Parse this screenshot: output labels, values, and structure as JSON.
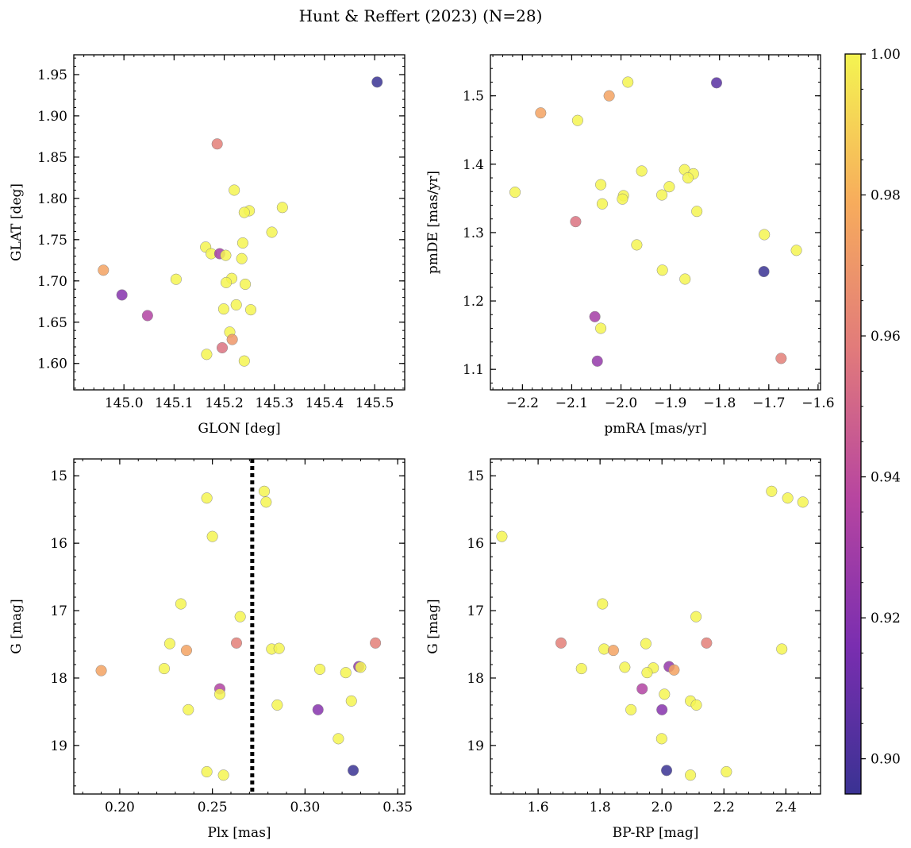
{
  "figure": {
    "title": "Hunt & Reffert (2023) (N=28)"
  },
  "chart_data": [
    {
      "type": "scatter",
      "panel": "top-left",
      "xlabel": "GLON [deg]",
      "ylabel": "GLAT [deg]",
      "xlim": [
        144.9,
        145.56
      ],
      "ylim": [
        1.568,
        1.974
      ],
      "xticks": [
        "145.0",
        "145.1",
        "145.2",
        "145.3",
        "145.4",
        "145.5"
      ],
      "yticks": [
        "1.60",
        "1.65",
        "1.70",
        "1.75",
        "1.80",
        "1.85",
        "1.90",
        "1.95"
      ],
      "grid": false,
      "points": [
        {
          "x": 145.505,
          "y": 1.941,
          "c": 0.895
        },
        {
          "x": 145.186,
          "y": 1.866,
          "c": 0.96
        },
        {
          "x": 145.22,
          "y": 1.81,
          "c": 1.0
        },
        {
          "x": 145.316,
          "y": 1.789,
          "c": 1.0
        },
        {
          "x": 145.25,
          "y": 1.785,
          "c": 1.0
        },
        {
          "x": 145.24,
          "y": 1.783,
          "c": 1.0
        },
        {
          "x": 145.295,
          "y": 1.759,
          "c": 1.0
        },
        {
          "x": 145.237,
          "y": 1.746,
          "c": 1.0
        },
        {
          "x": 145.163,
          "y": 1.741,
          "c": 1.0
        },
        {
          "x": 145.174,
          "y": 1.733,
          "c": 1.0
        },
        {
          "x": 145.191,
          "y": 1.733,
          "c": 0.93
        },
        {
          "x": 145.203,
          "y": 1.731,
          "c": 1.0
        },
        {
          "x": 145.235,
          "y": 1.727,
          "c": 1.0
        },
        {
          "x": 144.959,
          "y": 1.713,
          "c": 0.975
        },
        {
          "x": 145.104,
          "y": 1.702,
          "c": 1.0
        },
        {
          "x": 145.215,
          "y": 1.703,
          "c": 1.0
        },
        {
          "x": 145.204,
          "y": 1.698,
          "c": 1.0
        },
        {
          "x": 145.242,
          "y": 1.696,
          "c": 1.0
        },
        {
          "x": 144.996,
          "y": 1.683,
          "c": 0.92
        },
        {
          "x": 145.224,
          "y": 1.671,
          "c": 1.0
        },
        {
          "x": 145.199,
          "y": 1.666,
          "c": 1.0
        },
        {
          "x": 145.253,
          "y": 1.665,
          "c": 1.0
        },
        {
          "x": 145.047,
          "y": 1.658,
          "c": 0.935
        },
        {
          "x": 145.211,
          "y": 1.638,
          "c": 1.0
        },
        {
          "x": 145.216,
          "y": 1.629,
          "c": 0.97
        },
        {
          "x": 145.196,
          "y": 1.619,
          "c": 0.955
        },
        {
          "x": 145.165,
          "y": 1.611,
          "c": 1.0
        },
        {
          "x": 145.24,
          "y": 1.603,
          "c": 1.0
        }
      ]
    },
    {
      "type": "scatter",
      "panel": "top-right",
      "xlabel": "pmRA [mas/yr]",
      "ylabel": "pmDE [mas/yr]",
      "xlim": [
        -2.265,
        -1.595
      ],
      "ylim": [
        1.07,
        1.56
      ],
      "xticks": [
        "−2.2",
        "−2.1",
        "−2.0",
        "−1.9",
        "−1.8",
        "−1.7",
        "−1.6"
      ],
      "yticks": [
        "1.1",
        "1.2",
        "1.3",
        "1.4",
        "1.5"
      ],
      "grid": false,
      "points": [
        {
          "x": -1.986,
          "y": 1.52,
          "c": 1.0
        },
        {
          "x": -1.806,
          "y": 1.519,
          "c": 0.905
        },
        {
          "x": -2.024,
          "y": 1.5,
          "c": 0.975
        },
        {
          "x": -2.163,
          "y": 1.475,
          "c": 0.975
        },
        {
          "x": -2.088,
          "y": 1.464,
          "c": 1.0
        },
        {
          "x": -1.958,
          "y": 1.39,
          "c": 1.0
        },
        {
          "x": -1.871,
          "y": 1.392,
          "c": 1.0
        },
        {
          "x": -1.853,
          "y": 1.386,
          "c": 1.0
        },
        {
          "x": -1.864,
          "y": 1.38,
          "c": 1.0
        },
        {
          "x": -2.041,
          "y": 1.37,
          "c": 1.0
        },
        {
          "x": -1.902,
          "y": 1.367,
          "c": 1.0
        },
        {
          "x": -2.215,
          "y": 1.359,
          "c": 1.0
        },
        {
          "x": -1.917,
          "y": 1.355,
          "c": 1.0
        },
        {
          "x": -1.995,
          "y": 1.354,
          "c": 1.0
        },
        {
          "x": -1.997,
          "y": 1.349,
          "c": 1.0
        },
        {
          "x": -2.038,
          "y": 1.342,
          "c": 1.0
        },
        {
          "x": -1.846,
          "y": 1.331,
          "c": 1.0
        },
        {
          "x": -2.092,
          "y": 1.316,
          "c": 0.955
        },
        {
          "x": -1.709,
          "y": 1.297,
          "c": 1.0
        },
        {
          "x": -1.968,
          "y": 1.282,
          "c": 1.0
        },
        {
          "x": -1.644,
          "y": 1.274,
          "c": 1.0
        },
        {
          "x": -1.916,
          "y": 1.245,
          "c": 1.0
        },
        {
          "x": -1.71,
          "y": 1.243,
          "c": 0.895
        },
        {
          "x": -1.87,
          "y": 1.232,
          "c": 1.0
        },
        {
          "x": -2.053,
          "y": 1.177,
          "c": 0.93
        },
        {
          "x": -2.041,
          "y": 1.16,
          "c": 1.0
        },
        {
          "x": -1.675,
          "y": 1.116,
          "c": 0.96
        },
        {
          "x": -2.048,
          "y": 1.112,
          "c": 0.925
        }
      ]
    },
    {
      "type": "scatter",
      "panel": "bottom-left",
      "xlabel": "Plx [mas]",
      "ylabel": "G [mag]",
      "xlim": [
        0.1752,
        0.3538
      ],
      "ylim": [
        19.72,
        14.75
      ],
      "y_inverted": true,
      "xticks": [
        "0.20",
        "0.25",
        "0.30",
        "0.35"
      ],
      "yticks": [
        "15",
        "16",
        "17",
        "18",
        "19"
      ],
      "grid": false,
      "vline": {
        "x": 0.2715,
        "style": "dotted"
      },
      "points": [
        {
          "x": 0.278,
          "y": 15.23,
          "c": 1.0
        },
        {
          "x": 0.247,
          "y": 15.33,
          "c": 1.0
        },
        {
          "x": 0.279,
          "y": 15.39,
          "c": 1.0
        },
        {
          "x": 0.25,
          "y": 15.9,
          "c": 1.0
        },
        {
          "x": 0.233,
          "y": 16.9,
          "c": 1.0
        },
        {
          "x": 0.265,
          "y": 17.09,
          "c": 1.0
        },
        {
          "x": 0.338,
          "y": 17.48,
          "c": 0.96
        },
        {
          "x": 0.227,
          "y": 17.49,
          "c": 1.0
        },
        {
          "x": 0.263,
          "y": 17.48,
          "c": 0.96
        },
        {
          "x": 0.282,
          "y": 17.57,
          "c": 1.0
        },
        {
          "x": 0.286,
          "y": 17.56,
          "c": 1.0
        },
        {
          "x": 0.236,
          "y": 17.59,
          "c": 0.975
        },
        {
          "x": 0.329,
          "y": 17.83,
          "c": 0.925
        },
        {
          "x": 0.33,
          "y": 17.84,
          "c": 1.0
        },
        {
          "x": 0.224,
          "y": 17.86,
          "c": 1.0
        },
        {
          "x": 0.308,
          "y": 17.87,
          "c": 1.0
        },
        {
          "x": 0.19,
          "y": 17.89,
          "c": 0.975
        },
        {
          "x": 0.322,
          "y": 17.92,
          "c": 1.0
        },
        {
          "x": 0.254,
          "y": 18.16,
          "c": 0.935
        },
        {
          "x": 0.254,
          "y": 18.24,
          "c": 1.0
        },
        {
          "x": 0.325,
          "y": 18.34,
          "c": 1.0
        },
        {
          "x": 0.285,
          "y": 18.4,
          "c": 1.0
        },
        {
          "x": 0.237,
          "y": 18.47,
          "c": 1.0
        },
        {
          "x": 0.307,
          "y": 18.47,
          "c": 0.92
        },
        {
          "x": 0.318,
          "y": 18.9,
          "c": 1.0
        },
        {
          "x": 0.326,
          "y": 19.37,
          "c": 0.895
        },
        {
          "x": 0.247,
          "y": 19.39,
          "c": 1.0
        },
        {
          "x": 0.256,
          "y": 19.44,
          "c": 1.0
        }
      ]
    },
    {
      "type": "scatter",
      "panel": "bottom-right",
      "xlabel": "BP-RP [mag]",
      "ylabel": "G [mag]",
      "xlim": [
        1.446,
        2.512
      ],
      "ylim": [
        19.72,
        14.75
      ],
      "y_inverted": true,
      "xticks": [
        "1.6",
        "1.8",
        "2.0",
        "2.2",
        "2.4"
      ],
      "yticks": [
        "15",
        "16",
        "17",
        "18",
        "19"
      ],
      "grid": false,
      "points": [
        {
          "x": 2.354,
          "y": 15.23,
          "c": 1.0
        },
        {
          "x": 2.406,
          "y": 15.33,
          "c": 1.0
        },
        {
          "x": 2.455,
          "y": 15.39,
          "c": 1.0
        },
        {
          "x": 1.483,
          "y": 15.9,
          "c": 1.0
        },
        {
          "x": 1.808,
          "y": 16.9,
          "c": 1.0
        },
        {
          "x": 2.11,
          "y": 17.09,
          "c": 1.0
        },
        {
          "x": 1.674,
          "y": 17.48,
          "c": 0.96
        },
        {
          "x": 2.144,
          "y": 17.48,
          "c": 0.96
        },
        {
          "x": 1.948,
          "y": 17.49,
          "c": 1.0
        },
        {
          "x": 1.813,
          "y": 17.57,
          "c": 1.0
        },
        {
          "x": 2.387,
          "y": 17.57,
          "c": 1.0
        },
        {
          "x": 1.843,
          "y": 17.59,
          "c": 0.975
        },
        {
          "x": 2.023,
          "y": 17.83,
          "c": 0.925
        },
        {
          "x": 1.88,
          "y": 17.84,
          "c": 1.0
        },
        {
          "x": 1.972,
          "y": 17.85,
          "c": 1.0
        },
        {
          "x": 1.74,
          "y": 17.86,
          "c": 1.0
        },
        {
          "x": 2.039,
          "y": 17.88,
          "c": 0.975
        },
        {
          "x": 1.952,
          "y": 17.92,
          "c": 1.0
        },
        {
          "x": 1.936,
          "y": 18.16,
          "c": 0.935
        },
        {
          "x": 2.008,
          "y": 18.24,
          "c": 1.0
        },
        {
          "x": 2.092,
          "y": 18.34,
          "c": 1.0
        },
        {
          "x": 2.111,
          "y": 18.4,
          "c": 1.0
        },
        {
          "x": 1.9,
          "y": 18.47,
          "c": 1.0
        },
        {
          "x": 2.0,
          "y": 18.47,
          "c": 0.92
        },
        {
          "x": 1.999,
          "y": 18.9,
          "c": 1.0
        },
        {
          "x": 2.015,
          "y": 19.37,
          "c": 0.895
        },
        {
          "x": 2.208,
          "y": 19.39,
          "c": 1.0
        },
        {
          "x": 2.092,
          "y": 19.44,
          "c": 1.0
        }
      ]
    }
  ],
  "colorbar": {
    "colormap": "plasma",
    "vmin": 0.895,
    "vmax": 1.0,
    "ticks": [
      "0.90",
      "0.92",
      "0.94",
      "0.96",
      "0.98",
      "1.00"
    ],
    "tick_values": [
      0.9,
      0.92,
      0.94,
      0.96,
      0.98,
      1.0
    ],
    "colors": [
      "#3a3293",
      "#7a2eb0",
      "#b745a0",
      "#e17a7b",
      "#f7ac5c",
      "#f4f451"
    ]
  },
  "style": {
    "marker_edge": "#888888",
    "marker_alpha": 0.85
  }
}
